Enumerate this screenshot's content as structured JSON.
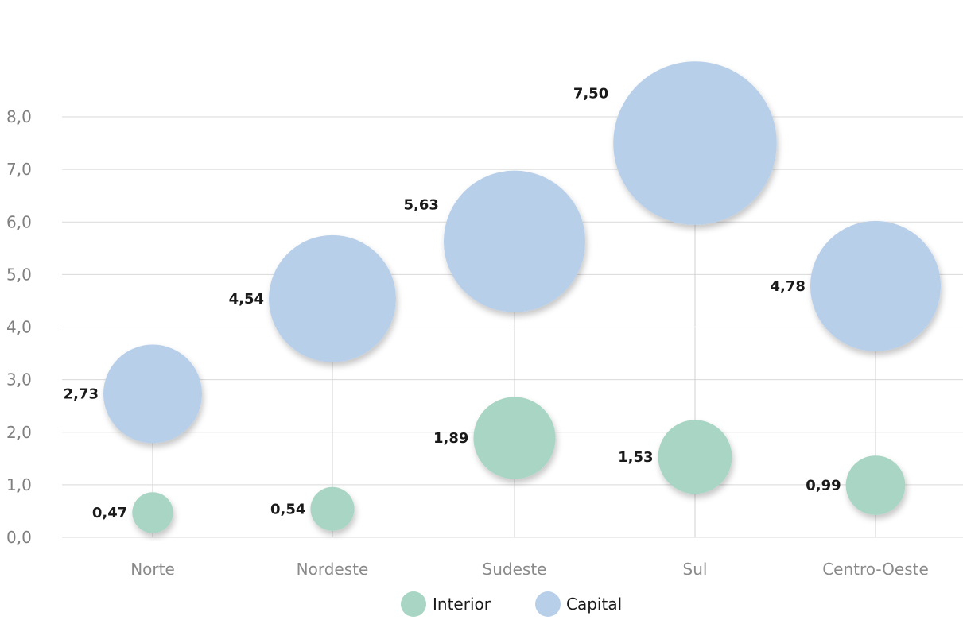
{
  "chart_data": {
    "type": "bubble",
    "categories": [
      "Norte",
      "Nordeste",
      "Sudeste",
      "Sul",
      "Centro-Oeste"
    ],
    "ylim": [
      0,
      8
    ],
    "y_ticks": [
      "0,0",
      "1,0",
      "2,0",
      "3,0",
      "4,0",
      "5,0",
      "6,0",
      "7,0",
      "8,0"
    ],
    "grid": true,
    "legend_position": "bottom",
    "series": [
      {
        "name": "Interior",
        "color": "#a8d5c4",
        "values": [
          0.47,
          0.54,
          1.89,
          1.53,
          0.99
        ],
        "labels": [
          "0,47",
          "0,54",
          "1,89",
          "1,53",
          "0,99"
        ]
      },
      {
        "name": "Capital",
        "color": "#b8cfea",
        "values": [
          2.73,
          4.54,
          5.63,
          7.5,
          4.78
        ],
        "labels": [
          "2,73",
          "4,54",
          "5,63",
          "7,50",
          "4,78"
        ]
      }
    ]
  }
}
